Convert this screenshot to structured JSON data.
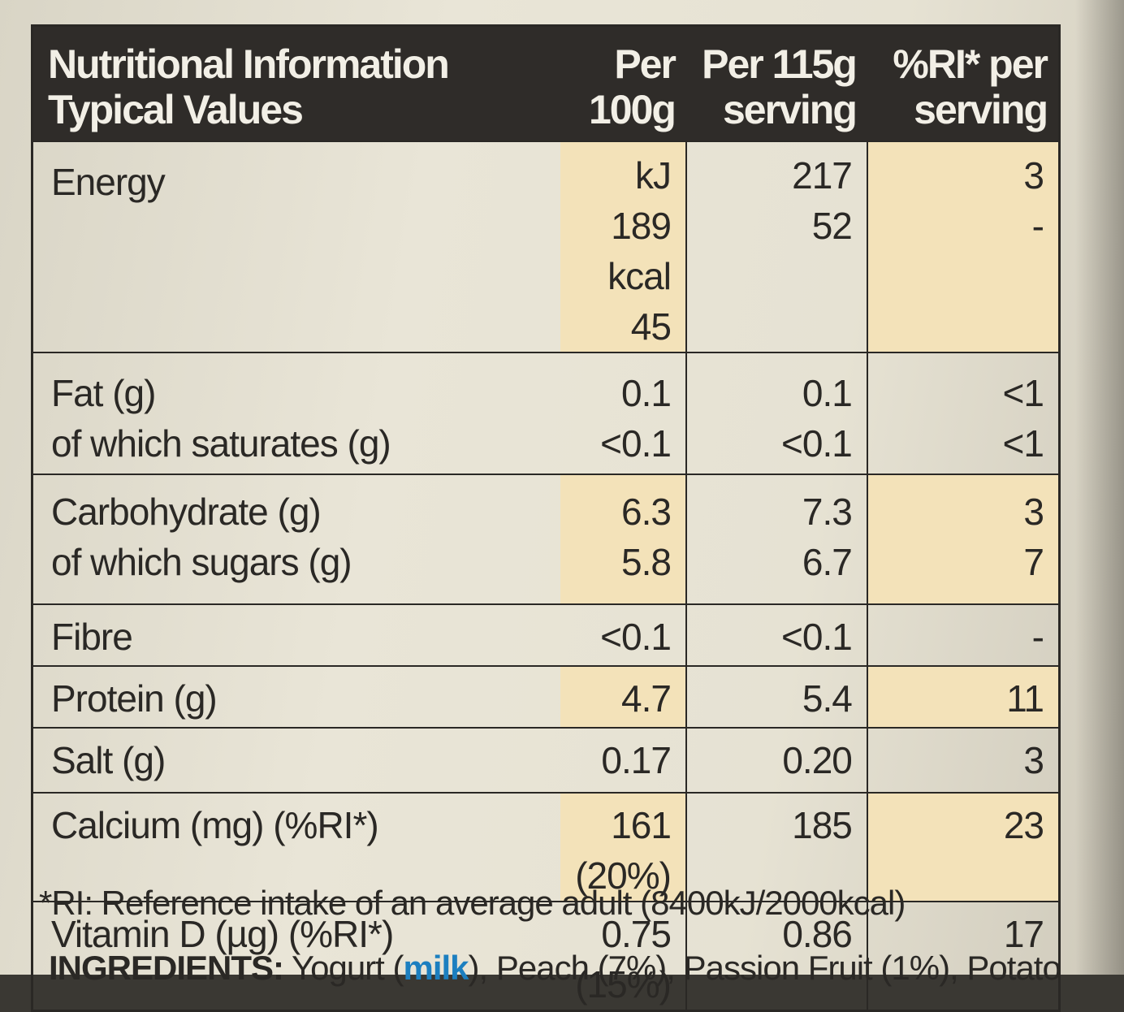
{
  "header": {
    "title_line1": "Nutritional Information",
    "title_line2": "Typical Values",
    "col_per100_line1": "Per",
    "col_per100_line2": "100g",
    "col_serving_line1": "Per 115g",
    "col_serving_line2": "serving",
    "col_ri_line1": "%RI* per",
    "col_ri_line2": "serving"
  },
  "rows": [
    {
      "label": "Energy",
      "per100_a": "kJ 189",
      "per100_b": "kcal 45",
      "serving_a": "217",
      "serving_b": "52",
      "ri_a": "3",
      "ri_b": "-"
    },
    {
      "label_a": "Fat (g)",
      "label_b": "of which saturates (g)",
      "per100_a": "0.1",
      "per100_b": "<0.1",
      "serving_a": "0.1",
      "serving_b": "<0.1",
      "ri_a": "<1",
      "ri_b": "<1"
    },
    {
      "label_a": "Carbohydrate (g)",
      "label_b": "of which sugars (g)",
      "per100_a": "6.3",
      "per100_b": "5.8",
      "serving_a": "7.3",
      "serving_b": "6.7",
      "ri_a": "3",
      "ri_b": "7"
    },
    {
      "label": "Fibre",
      "per100": "<0.1",
      "serving": "<0.1",
      "ri": "-"
    },
    {
      "label": "Protein (g)",
      "per100": "4.7",
      "serving": "5.4",
      "ri": "11"
    },
    {
      "label": "Salt (g)",
      "per100": "0.17",
      "serving": "0.20",
      "ri": "3"
    },
    {
      "label": "Calcium (mg) (%RI*)",
      "per100": "161 (20%)",
      "serving": "185",
      "ri": "23"
    },
    {
      "label": "Vitamin D (µg) (%RI*)",
      "per100": "0.75 (15%)",
      "serving": "0.86",
      "ri": "17"
    }
  ],
  "footnote": "*RI: Reference intake of an average adult (8400kJ/2000kcal)",
  "ingredients": {
    "heading": "INGREDIENTS:",
    "first": "Yogurt (",
    "allergen": "milk",
    "rest": "), Peach (7%), Passion Fruit (1%), Potato"
  },
  "colors": {
    "header_bg": "#2f2c29",
    "highlight": "#f3e2b9",
    "allergen": "#1c7fc0"
  }
}
